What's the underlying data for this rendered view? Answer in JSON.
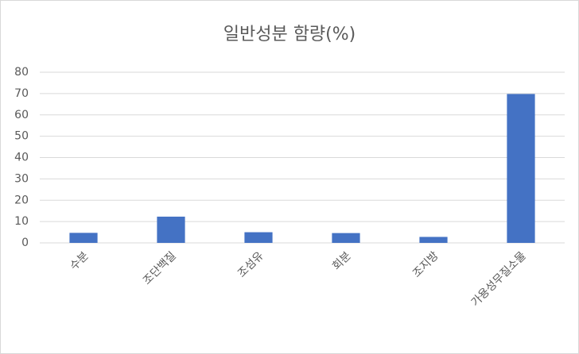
{
  "chart_data": {
    "type": "bar",
    "title": "일반성분 함량(%)",
    "categories": [
      "수분",
      "조단백질",
      "조섬유",
      "회분",
      "조지방",
      "가용성무질소물"
    ],
    "values": [
      4.7,
      12.3,
      5.0,
      4.6,
      2.8,
      69.8
    ],
    "color": "#4472c4",
    "ylim": [
      0,
      80
    ],
    "yticks": [
      0,
      10,
      20,
      30,
      40,
      50,
      60,
      70,
      80
    ],
    "grid": true
  }
}
